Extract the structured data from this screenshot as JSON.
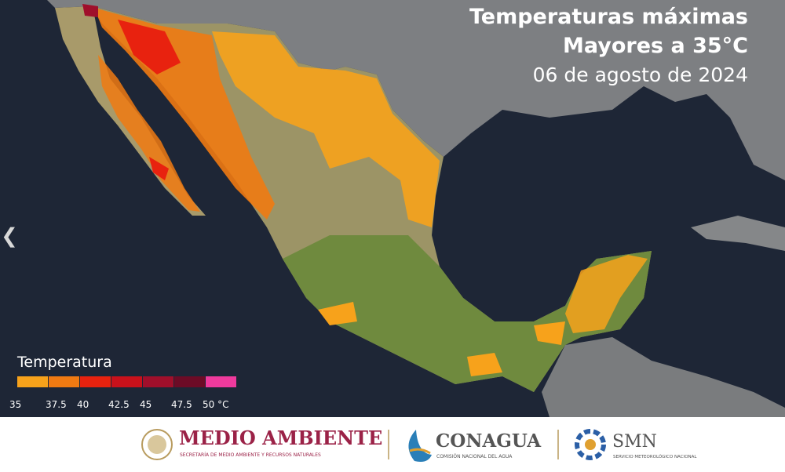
{
  "header": {
    "title": "Temperaturas máximas",
    "subtitle": "Mayores a 35°C",
    "date": "06 de agosto de 2024"
  },
  "legend": {
    "title": "Temperatura",
    "bins": [
      {
        "label": "35",
        "color": "#f7a21b"
      },
      {
        "label": "37.5",
        "color": "#f07a12"
      },
      {
        "label": "40",
        "color": "#e8220f"
      },
      {
        "label": "42.5",
        "color": "#c9111b"
      },
      {
        "label": "45",
        "color": "#a00f2b"
      },
      {
        "label": "47.5",
        "color": "#6c0b26"
      },
      {
        "label": "50 °C",
        "color": "#ef3a9d"
      }
    ]
  },
  "footer": {
    "semarnat": {
      "name": "MEDIO AMBIENTE",
      "subtitle": "SECRETARÍA DE MEDIO AMBIENTE Y RECURSOS NATURALES"
    },
    "conagua": {
      "name": "CONAGUA",
      "subtitle": "COMISIÓN NACIONAL DEL AGUA"
    },
    "smn": {
      "name": "SMN",
      "subtitle": "SERVICIO METEOROLÓGICO NACIONAL"
    }
  }
}
